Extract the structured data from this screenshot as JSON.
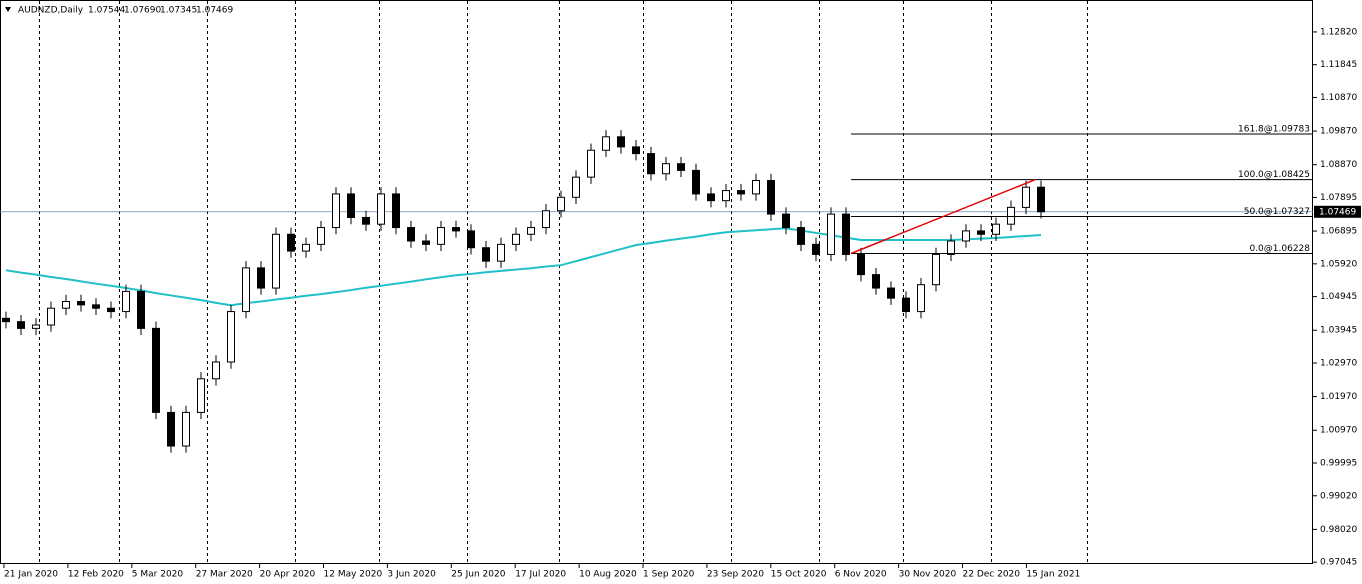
{
  "chart_data": {
    "type": "candlestick",
    "header": {
      "symbol": "AUDNZD,Daily",
      "open": 1.07544,
      "high": 1.0769,
      "high_label": "1.07690",
      "low": 1.07345,
      "close": 1.07469
    },
    "categories": [
      "21 Jan 2020",
      "12 Feb 2020",
      "5 Mar 2020",
      "27 Mar 2020",
      "20 Apr 2020",
      "12 May 2020",
      "3 Jun 2020",
      "25 Jun 2020",
      "17 Jul 2020",
      "10 Aug 2020",
      "1 Sep 2020",
      "23 Sep 2020",
      "15 Oct 2020",
      "6 Nov 2020",
      "30 Nov 2020",
      "22 Dec 2020",
      "15 Jan 2021"
    ],
    "open": [
      1.043,
      1.042,
      1.04,
      1.041,
      1.046,
      1.048,
      1.047,
      1.046,
      1.045,
      1.051,
      1.04,
      1.015,
      1.005,
      1.015,
      1.025,
      1.03,
      1.045,
      1.058,
      1.052,
      1.068,
      1.063,
      1.065,
      1.07,
      1.08,
      1.073,
      1.071,
      1.08,
      1.07,
      1.066,
      1.065,
      1.07,
      1.069,
      1.064,
      1.06,
      1.065,
      1.068,
      1.07,
      1.075,
      1.079,
      1.085,
      1.093,
      1.097,
      1.094,
      1.092,
      1.086,
      1.089,
      1.087,
      1.08,
      1.078,
      1.081,
      1.08,
      1.084,
      1.074,
      1.07,
      1.065,
      1.062,
      1.074,
      1.062,
      1.056,
      1.052,
      1.049,
      1.045,
      1.053,
      1.062,
      1.066,
      1.069,
      1.068,
      1.071,
      1.076,
      1.082
    ],
    "high": [
      1.045,
      1.044,
      1.043,
      1.048,
      1.05,
      1.05,
      1.049,
      1.048,
      1.053,
      1.053,
      1.042,
      1.017,
      1.017,
      1.027,
      1.032,
      1.047,
      1.06,
      1.06,
      1.07,
      1.07,
      1.067,
      1.072,
      1.082,
      1.082,
      1.075,
      1.082,
      1.082,
      1.072,
      1.068,
      1.072,
      1.072,
      1.071,
      1.066,
      1.067,
      1.07,
      1.072,
      1.077,
      1.081,
      1.087,
      1.095,
      1.099,
      1.099,
      1.096,
      1.094,
      1.091,
      1.091,
      1.089,
      1.082,
      1.083,
      1.083,
      1.086,
      1.086,
      1.076,
      1.072,
      1.067,
      1.076,
      1.076,
      1.064,
      1.058,
      1.054,
      1.051,
      1.055,
      1.064,
      1.068,
      1.071,
      1.071,
      1.073,
      1.078,
      1.084,
      1.084
    ],
    "low": [
      1.04,
      1.038,
      1.038,
      1.039,
      1.044,
      1.045,
      1.044,
      1.043,
      1.043,
      1.038,
      1.013,
      1.003,
      1.003,
      1.013,
      1.023,
      1.028,
      1.043,
      1.05,
      1.05,
      1.061,
      1.061,
      1.063,
      1.068,
      1.071,
      1.069,
      1.069,
      1.068,
      1.064,
      1.063,
      1.063,
      1.067,
      1.062,
      1.058,
      1.058,
      1.063,
      1.066,
      1.068,
      1.073,
      1.077,
      1.083,
      1.091,
      1.092,
      1.09,
      1.084,
      1.084,
      1.085,
      1.078,
      1.076,
      1.076,
      1.078,
      1.078,
      1.072,
      1.068,
      1.063,
      1.06,
      1.06,
      1.06,
      1.054,
      1.05,
      1.047,
      1.043,
      1.043,
      1.051,
      1.06,
      1.064,
      1.066,
      1.066,
      1.069,
      1.074,
      1.0727
    ],
    "close": [
      1.042,
      1.04,
      1.041,
      1.046,
      1.048,
      1.047,
      1.046,
      1.045,
      1.051,
      1.04,
      1.015,
      1.005,
      1.015,
      1.025,
      1.03,
      1.045,
      1.058,
      1.052,
      1.068,
      1.063,
      1.065,
      1.07,
      1.08,
      1.073,
      1.071,
      1.08,
      1.07,
      1.066,
      1.065,
      1.07,
      1.069,
      1.064,
      1.06,
      1.065,
      1.068,
      1.07,
      1.075,
      1.079,
      1.085,
      1.093,
      1.097,
      1.094,
      1.092,
      1.086,
      1.089,
      1.087,
      1.08,
      1.078,
      1.081,
      1.08,
      1.084,
      1.074,
      1.07,
      1.065,
      1.062,
      1.074,
      1.062,
      1.056,
      1.052,
      1.049,
      1.045,
      1.053,
      1.062,
      1.066,
      1.069,
      1.068,
      1.071,
      1.076,
      1.082,
      1.0747
    ],
    "ma": {
      "color": "#20c0c8",
      "values": [
        1.0573,
        1.0566,
        1.056,
        1.0553,
        1.0547,
        1.054,
        1.0533,
        1.0527,
        1.052,
        1.0513,
        1.0505,
        1.0498,
        1.0491,
        1.0484,
        1.0476,
        1.0469,
        1.0475,
        1.048,
        1.0486,
        1.0491,
        1.0497,
        1.0502,
        1.0508,
        1.0514,
        1.0521,
        1.0527,
        1.0533,
        1.0539,
        1.0546,
        1.0552,
        1.0558,
        1.0562,
        1.0567,
        1.0571,
        1.0575,
        1.0579,
        1.0584,
        1.0588,
        1.06,
        1.0612,
        1.0624,
        1.0636,
        1.0648,
        1.0654,
        1.0661,
        1.0667,
        1.0673,
        1.068,
        1.0686,
        1.0689,
        1.0692,
        1.0695,
        1.0698,
        1.0691,
        1.0684,
        1.0677,
        1.067,
        1.0663,
        1.0663,
        1.0663,
        1.0663,
        1.0663,
        1.0663,
        1.0663,
        1.0665,
        1.0667,
        1.0669,
        1.0672,
        1.0675,
        1.0678
      ]
    },
    "fibo": [
      {
        "label": "161.8@1.09783",
        "value": 1.09783
      },
      {
        "label": "100.0@1.08425",
        "value": 1.08425
      },
      {
        "label": "50.0@1.07327",
        "value": 1.07327
      },
      {
        "label": "0.0@1.06228",
        "value": 1.06228
      }
    ],
    "trend_color": "#e00000",
    "last_price": {
      "value": 1.07469,
      "label": "1.07469"
    },
    "ylim": [
      0.9699,
      1.1377
    ],
    "yticks": [
      {
        "value": 1.1282,
        "label": "1.12820"
      },
      1.11845,
      {
        "value": 1.1087,
        "label": "1.10870"
      },
      {
        "value": 1.0987,
        "label": "1.09870"
      },
      {
        "value": 1.0887,
        "label": "1.08870"
      },
      1.07895,
      1.06895,
      {
        "value": 1.0592,
        "label": "1.05920"
      },
      1.04945,
      1.03945,
      {
        "value": 1.0297,
        "label": "1.02970"
      },
      {
        "value": 1.0197,
        "label": "1.01970"
      },
      {
        "value": 1.0097,
        "label": "1.00970"
      },
      0.99995,
      {
        "value": 0.9902,
        "label": "0.99020"
      },
      {
        "value": 0.9802,
        "label": "0.98020"
      },
      0.97045
    ]
  }
}
